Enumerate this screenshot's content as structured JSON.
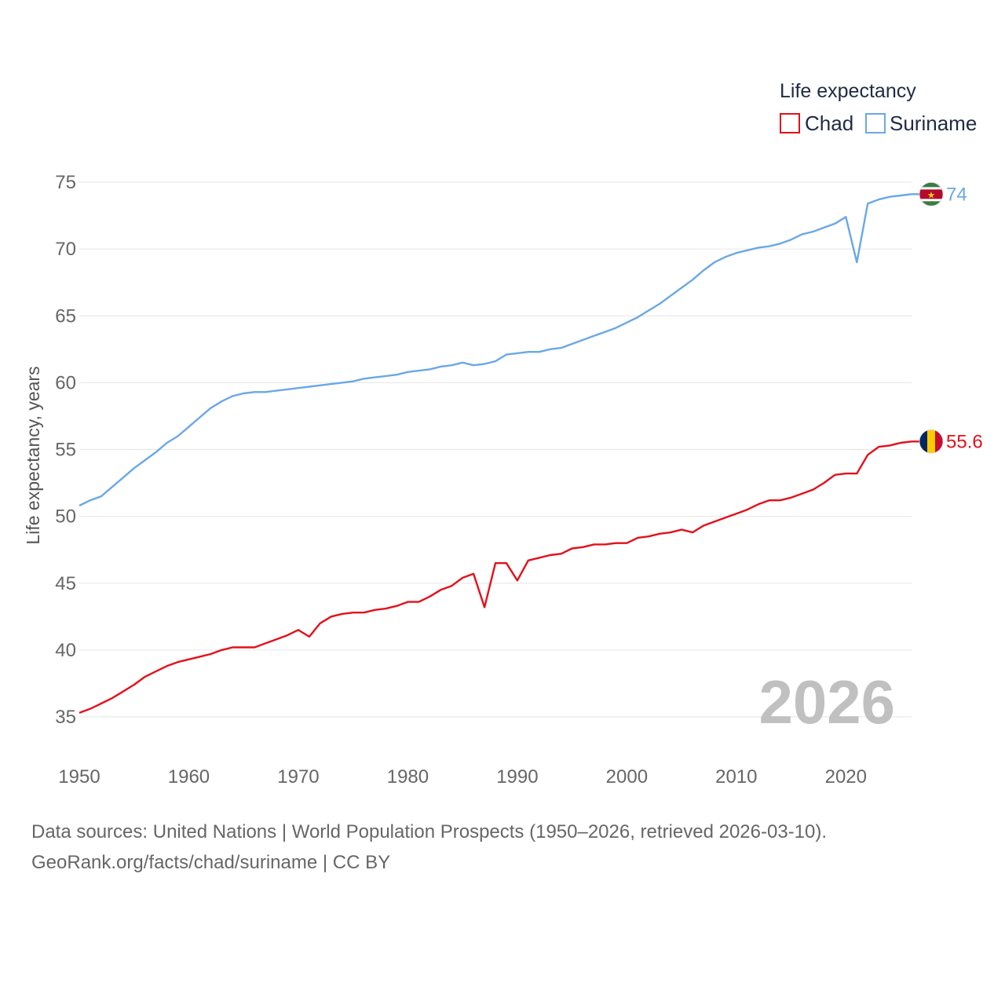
{
  "chart_data": {
    "type": "line",
    "legend_title": "Life expectancy",
    "ylabel": "Life expectancy, years",
    "xlabel": "",
    "xlim": [
      1950,
      2026
    ],
    "ylim": [
      32,
      76
    ],
    "x_ticks": [
      1950,
      1960,
      1970,
      1980,
      1990,
      2000,
      2010,
      2020
    ],
    "y_ticks": [
      35,
      40,
      45,
      50,
      55,
      60,
      65,
      70,
      75
    ],
    "year_label": "2026",
    "legend_position": "top-right",
    "x": [
      1950,
      1951,
      1952,
      1953,
      1954,
      1955,
      1956,
      1957,
      1958,
      1959,
      1960,
      1961,
      1962,
      1963,
      1964,
      1965,
      1966,
      1967,
      1968,
      1969,
      1970,
      1971,
      1972,
      1973,
      1974,
      1975,
      1976,
      1977,
      1978,
      1979,
      1980,
      1981,
      1982,
      1983,
      1984,
      1985,
      1986,
      1987,
      1988,
      1989,
      1990,
      1991,
      1992,
      1993,
      1994,
      1995,
      1996,
      1997,
      1998,
      1999,
      2000,
      2001,
      2002,
      2003,
      2004,
      2005,
      2006,
      2007,
      2008,
      2009,
      2010,
      2011,
      2012,
      2013,
      2014,
      2015,
      2016,
      2017,
      2018,
      2019,
      2020,
      2021,
      2022,
      2023,
      2024,
      2025,
      2026
    ],
    "series": [
      {
        "name": "Chad",
        "color": "#e3101a",
        "end_label": "55.6",
        "flag": "chad-flag",
        "values": [
          35.3,
          35.6,
          36.0,
          36.4,
          36.9,
          37.4,
          38.0,
          38.4,
          38.8,
          39.1,
          39.3,
          39.5,
          39.7,
          40.0,
          40.2,
          40.2,
          40.2,
          40.5,
          40.8,
          41.1,
          41.5,
          41.0,
          42.0,
          42.5,
          42.7,
          42.8,
          42.8,
          43.0,
          43.1,
          43.3,
          43.6,
          43.6,
          44.0,
          44.5,
          44.8,
          45.4,
          45.7,
          43.2,
          46.5,
          46.5,
          45.2,
          46.7,
          46.9,
          47.1,
          47.2,
          47.6,
          47.7,
          47.9,
          47.9,
          48.0,
          48.0,
          48.4,
          48.5,
          48.7,
          48.8,
          49.0,
          48.8,
          49.3,
          49.6,
          49.9,
          50.2,
          50.5,
          50.9,
          51.2,
          51.2,
          51.4,
          51.7,
          52.0,
          52.5,
          53.1,
          53.2,
          53.2,
          54.6,
          55.2,
          55.3,
          55.5,
          55.6
        ]
      },
      {
        "name": "Suriname",
        "color": "#6aa8e6",
        "end_label": "74",
        "flag": "suriname-flag",
        "values": [
          50.8,
          51.2,
          51.5,
          52.2,
          52.9,
          53.6,
          54.2,
          54.8,
          55.5,
          56.0,
          56.7,
          57.4,
          58.1,
          58.6,
          59.0,
          59.2,
          59.3,
          59.3,
          59.4,
          59.5,
          59.6,
          59.7,
          59.8,
          59.9,
          60.0,
          60.1,
          60.3,
          60.4,
          60.5,
          60.6,
          60.8,
          60.9,
          61.0,
          61.2,
          61.3,
          61.5,
          61.3,
          61.4,
          61.6,
          62.1,
          62.2,
          62.3,
          62.3,
          62.5,
          62.6,
          62.9,
          63.2,
          63.5,
          63.8,
          64.1,
          64.5,
          64.9,
          65.4,
          65.9,
          66.5,
          67.1,
          67.7,
          68.4,
          69.0,
          69.4,
          69.7,
          69.9,
          70.1,
          70.2,
          70.4,
          70.7,
          71.1,
          71.3,
          71.6,
          71.9,
          72.4,
          69.0,
          73.4,
          73.7,
          73.9,
          74.0,
          74.1
        ]
      }
    ]
  },
  "source": {
    "line1": "Data sources: United Nations | World Population Prospects (1950–2026, retrieved 2026-03-10).",
    "line2": "GeoRank.org/facts/chad/suriname | CC BY"
  }
}
